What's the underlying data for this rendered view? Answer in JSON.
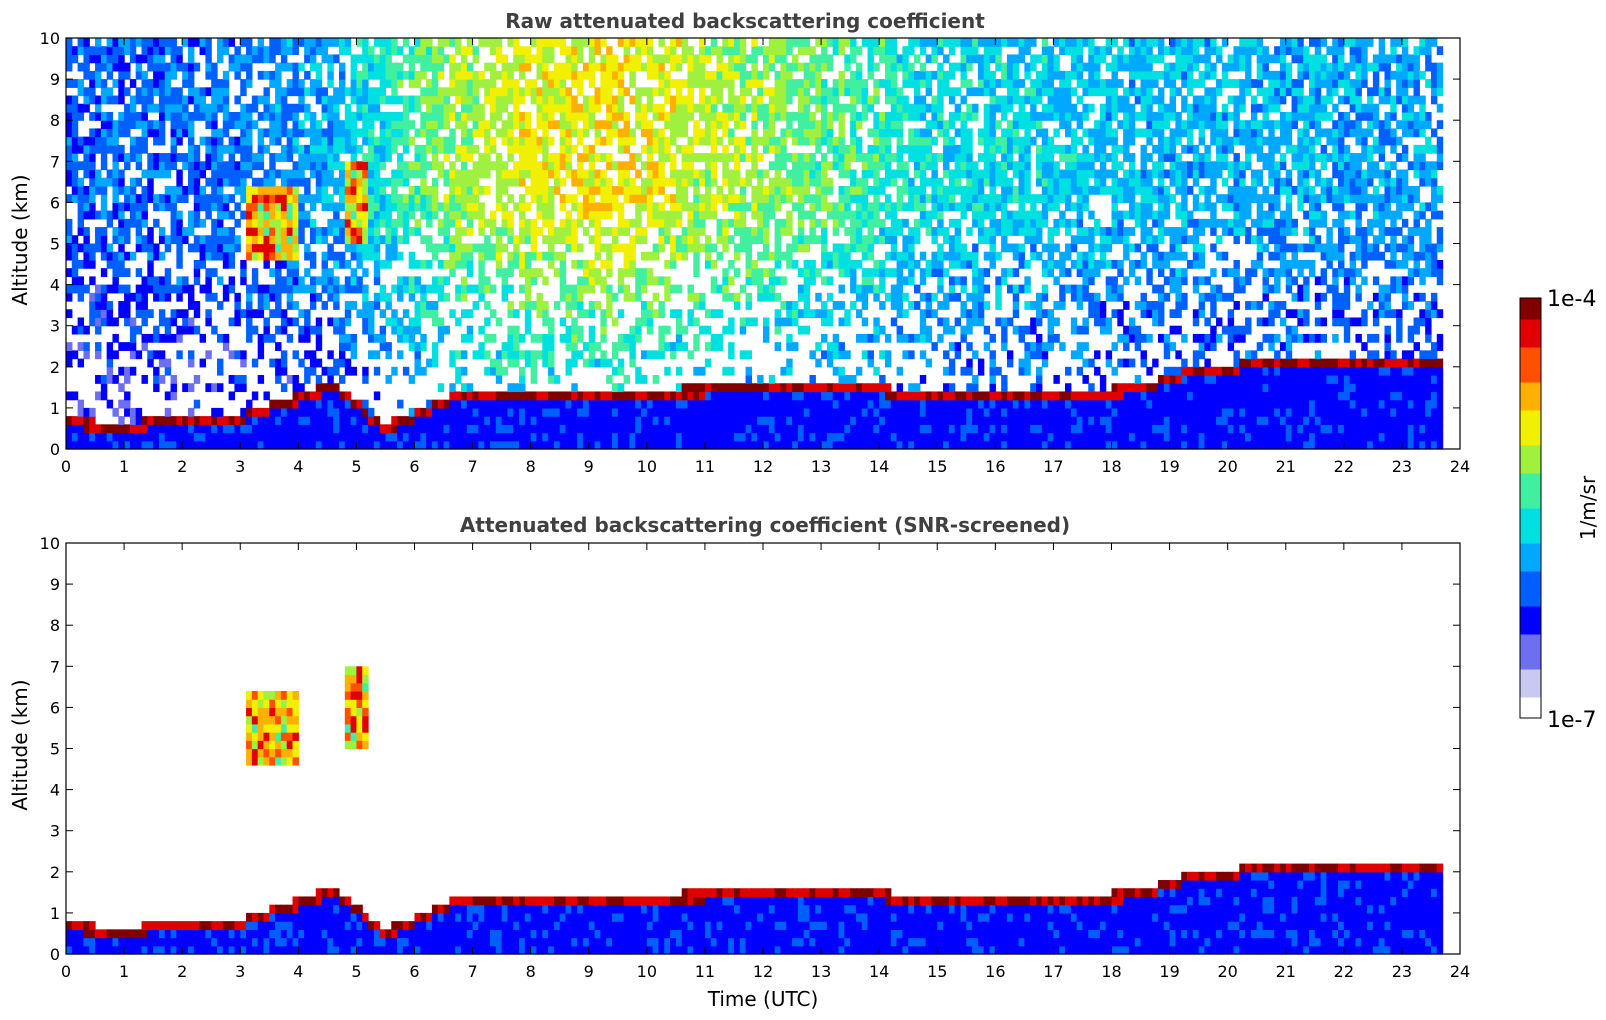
{
  "figure": {
    "colorbar": {
      "label": "1/m/sr",
      "max_label": "1e-4",
      "min_label": "1e-7",
      "scale": "log",
      "range": [
        1e-07,
        0.0001
      ],
      "colormap": [
        "#ffffff",
        "#c8c8f0",
        "#6e6ef0",
        "#0000ff",
        "#0060ff",
        "#00a8ff",
        "#00e0e0",
        "#40f0a0",
        "#a0f040",
        "#f0f000",
        "#ffb000",
        "#ff5000",
        "#e00000",
        "#800000"
      ]
    }
  },
  "chart_data": [
    {
      "type": "heatmap",
      "title": "Raw attenuated backscattering coefficient",
      "xlabel": "",
      "ylabel": "Altitude (km)",
      "xlim": [
        0,
        24
      ],
      "ylim": [
        0,
        10
      ],
      "x_ticks": [
        "0",
        "1",
        "2",
        "3",
        "4",
        "5",
        "6",
        "7",
        "8",
        "9",
        "10",
        "11",
        "12",
        "13",
        "14",
        "15",
        "16",
        "17",
        "18",
        "19",
        "20",
        "21",
        "22",
        "23",
        "24"
      ],
      "y_ticks": [
        "0",
        "1",
        "2",
        "3",
        "4",
        "5",
        "6",
        "7",
        "8",
        "9",
        "10"
      ],
      "grid": false,
      "data_end_hour": 23.7,
      "cloud_layer_km": [
        [
          0.0,
          0.65
        ],
        [
          1.0,
          0.5
        ],
        [
          2.0,
          0.75
        ],
        [
          3.0,
          0.75
        ],
        [
          4.6,
          1.5
        ],
        [
          5.5,
          0.5
        ],
        [
          6.8,
          1.3
        ],
        [
          8.7,
          1.3
        ],
        [
          10.0,
          1.35
        ],
        [
          11.0,
          1.4
        ],
        [
          12.0,
          1.5
        ],
        [
          13.2,
          1.55
        ],
        [
          15.3,
          1.2
        ],
        [
          16.5,
          1.25
        ],
        [
          17.5,
          1.3
        ],
        [
          18.5,
          1.45
        ],
        [
          19.3,
          1.85
        ],
        [
          20.0,
          1.8
        ],
        [
          20.3,
          2.05
        ],
        [
          21.1,
          2.05
        ]
      ],
      "noise_level_by_hour": [
        [
          0,
          0.28
        ],
        [
          3,
          0.3
        ],
        [
          4.5,
          0.35
        ],
        [
          6.6,
          0.55
        ],
        [
          8,
          0.62
        ],
        [
          9.5,
          0.64
        ],
        [
          11,
          0.58
        ],
        [
          13.2,
          0.5
        ],
        [
          15,
          0.42
        ],
        [
          18,
          0.38
        ],
        [
          21,
          0.36
        ],
        [
          23.7,
          0.34
        ]
      ],
      "mid_level_cloud": [
        {
          "x": [
            3.1,
            4.0
          ],
          "y_km": [
            4.6,
            6.5
          ]
        },
        {
          "x": [
            4.8,
            5.2
          ],
          "y_km": [
            5.0,
            7.0
          ]
        }
      ],
      "colorbar_range": [
        1e-07,
        0.0001
      ]
    },
    {
      "type": "heatmap",
      "title": "Attenuated backscattering coefficient (SNR-screened)",
      "xlabel": "Time (UTC)",
      "ylabel": "Altitude (km)",
      "xlim": [
        0,
        24
      ],
      "ylim": [
        0,
        10
      ],
      "x_ticks": [
        "0",
        "1",
        "2",
        "3",
        "4",
        "5",
        "6",
        "7",
        "8",
        "9",
        "10",
        "11",
        "12",
        "13",
        "14",
        "15",
        "16",
        "17",
        "18",
        "19",
        "20",
        "21",
        "22",
        "23",
        "24"
      ],
      "y_ticks": [
        "0",
        "1",
        "2",
        "3",
        "4",
        "5",
        "6",
        "7",
        "8",
        "9",
        "10"
      ],
      "grid": false,
      "data_end_hour": 23.7,
      "cloud_layer_km": [
        [
          0.0,
          0.65
        ],
        [
          1.0,
          0.5
        ],
        [
          2.0,
          0.75
        ],
        [
          3.0,
          0.75
        ],
        [
          4.6,
          1.5
        ],
        [
          5.5,
          0.5
        ],
        [
          6.8,
          1.3
        ],
        [
          8.7,
          1.3
        ],
        [
          10.0,
          1.35
        ],
        [
          11.0,
          1.4
        ],
        [
          12.0,
          1.5
        ],
        [
          13.2,
          1.55
        ],
        [
          15.3,
          1.2
        ],
        [
          16.5,
          1.25
        ],
        [
          17.5,
          1.3
        ],
        [
          18.5,
          1.45
        ],
        [
          19.3,
          1.85
        ],
        [
          20.0,
          1.8
        ],
        [
          20.3,
          2.05
        ],
        [
          21.1,
          2.05
        ]
      ],
      "mid_level_cloud": [
        {
          "x": [
            3.1,
            4.0
          ],
          "y_km": [
            4.6,
            6.5
          ]
        },
        {
          "x": [
            4.8,
            5.2
          ],
          "y_km": [
            5.0,
            7.0
          ]
        }
      ],
      "colorbar_range": [
        1e-07,
        0.0001
      ]
    }
  ]
}
